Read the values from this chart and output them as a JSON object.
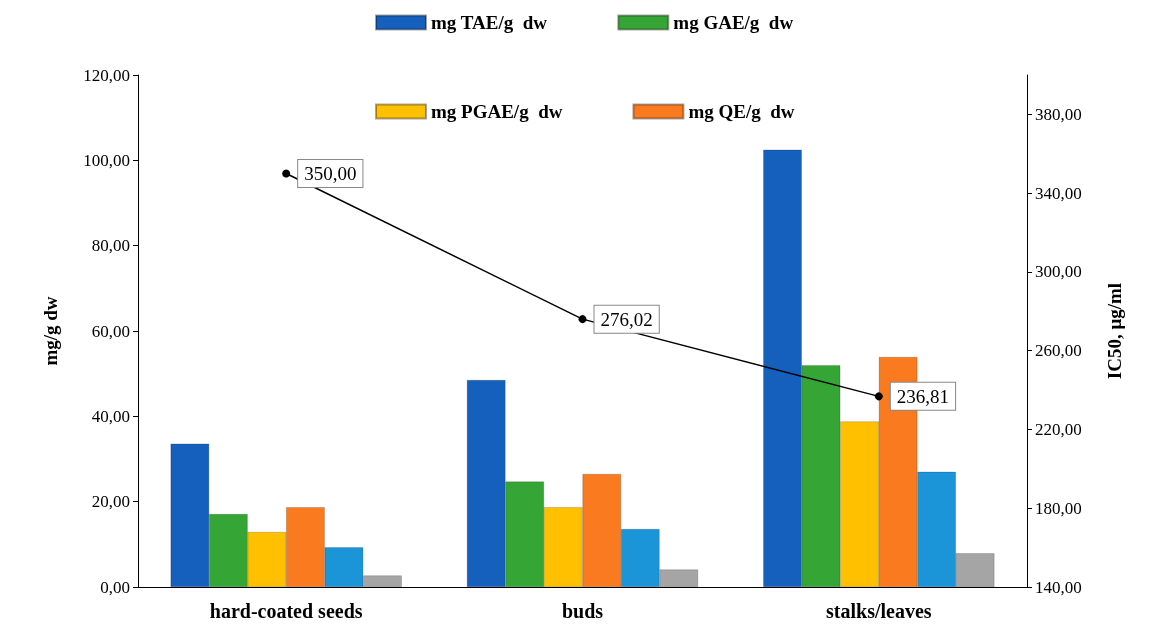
{
  "chart_data": {
    "type": "bar",
    "categories": [
      "hard-coated seeds",
      "buds",
      "stalks/leaves"
    ],
    "ylabel": "mg/g dw",
    "y2label": "IC50, μg/ml",
    "series": [
      {
        "name": "mg TAE/g  dw",
        "color": "#1560bd",
        "values": [
          33.6,
          48.5,
          102.5
        ]
      },
      {
        "name": "mg GAE/g  dw",
        "color": "#35a535",
        "values": [
          17.1,
          24.7,
          52
        ]
      },
      {
        "name": "mg PGAE/g  dw",
        "color": "#ffc000",
        "values": [
          12.9,
          18.7,
          38.8
        ]
      },
      {
        "name": "mg QE/g  dw",
        "color": "#f97a1f",
        "values": [
          18.7,
          26.5,
          53.9
        ]
      },
      {
        "color": "#1b95d8",
        "values": [
          9.3,
          13.6,
          27.0
        ]
      },
      {
        "color": "#a5a5a5",
        "values": [
          2.7,
          4.1,
          7.9
        ]
      },
      {
        "type": "line",
        "axis": "y2",
        "color": "#000000",
        "values": [
          350,
          276.02,
          236.81
        ],
        "value_labels": [
          "350,00",
          "276,02",
          "236,81"
        ],
        "marker": "circle",
        "line_style": "solid"
      }
    ],
    "ylim": [
      0,
      120
    ],
    "yticks": [
      {
        "value": 0,
        "label": "0,00"
      },
      {
        "value": 20,
        "label": "20,00"
      },
      {
        "value": 40,
        "label": "40,00"
      },
      {
        "value": 60,
        "label": "60,00"
      },
      {
        "value": 80,
        "label": "80,00"
      },
      {
        "value": 100,
        "label": "100,00"
      },
      {
        "value": 120,
        "label": "120,00"
      }
    ],
    "y2lim": [
      140,
      400
    ],
    "y2ticks": [
      {
        "value": 140,
        "label": "140,00"
      },
      {
        "value": 180,
        "label": "180,00"
      },
      {
        "value": 220,
        "label": "220,00"
      },
      {
        "value": 260,
        "label": "260,00"
      },
      {
        "value": 300,
        "label": "300,00"
      },
      {
        "value": 340,
        "label": "340,00"
      },
      {
        "value": 380,
        "label": "380,00"
      }
    ],
    "grid": false,
    "legend": "top"
  }
}
